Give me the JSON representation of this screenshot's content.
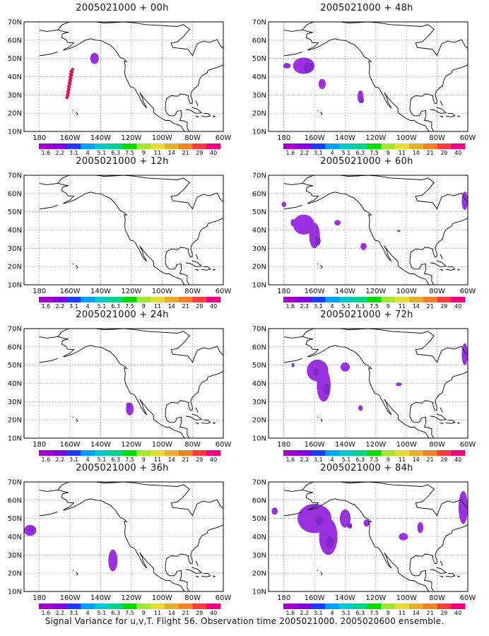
{
  "caption": "Signal Variance for u,v,T. Flight 56. Observation time 2005021000. 2005020600 ensemble.",
  "lat_labels": [
    "70N",
    "60N",
    "50N",
    "40N",
    "30N",
    "20N",
    "10N"
  ],
  "lon_labels": [
    "180",
    "160W",
    "140W",
    "120W",
    "100W",
    "80W",
    "60W"
  ],
  "colorbar": {
    "labels": [
      "1.6",
      "2.2",
      "3.1",
      "4",
      "5.1",
      "6.3",
      "7.5",
      "9",
      "11",
      "14",
      "21",
      "29",
      "40"
    ],
    "colors": [
      "#a000c8",
      "#8200dc",
      "#1e3cff",
      "#00a0ff",
      "#00c8c8",
      "#00d28c",
      "#00dc00",
      "#a0e632",
      "#e6dc32",
      "#e6af2d",
      "#f08228",
      "#fa3c3c",
      "#f00082"
    ]
  },
  "colors": {
    "signal_fill": "#9b30e0",
    "signal_core": "#8228c8",
    "obs_point": "#e0105a"
  },
  "panels": [
    {
      "title": "2005021000 + 00h",
      "col": 0,
      "row": 0
    },
    {
      "title": "2005021000 + 48h",
      "col": 1,
      "row": 0
    },
    {
      "title": "2005021000 + 12h",
      "col": 0,
      "row": 1
    },
    {
      "title": "2005021000 + 60h",
      "col": 1,
      "row": 1
    },
    {
      "title": "2005021000 + 24h",
      "col": 0,
      "row": 2
    },
    {
      "title": "2005021000 + 72h",
      "col": 1,
      "row": 2
    },
    {
      "title": "2005021000 + 36h",
      "col": 0,
      "row": 3
    },
    {
      "title": "2005021000 + 84h",
      "col": 1,
      "row": 3
    }
  ]
}
